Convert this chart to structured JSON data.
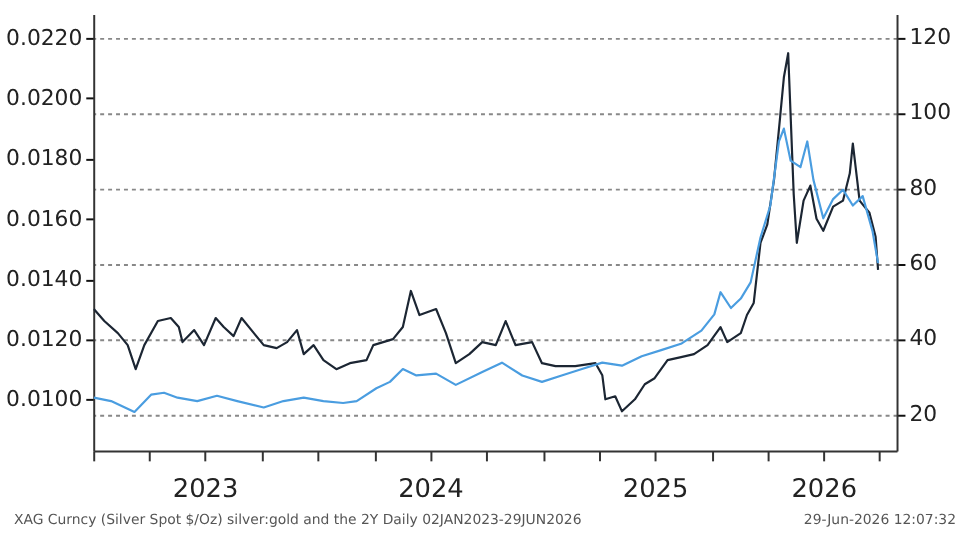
{
  "chart_data": {
    "type": "line",
    "xlim": [
      "2023-01-01",
      "2026-07-29"
    ],
    "xticks": [
      {
        "value": "2023-01-01",
        "label": null
      },
      {
        "value": "2023-04-01",
        "label": null
      },
      {
        "value": "2023-07-01",
        "label": "2023"
      },
      {
        "value": "2023-10-01",
        "label": null
      },
      {
        "value": "2024-01-01",
        "label": null
      },
      {
        "value": "2024-04-01",
        "label": null
      },
      {
        "value": "2024-07-01",
        "label": "2024"
      },
      {
        "value": "2024-10-01",
        "label": null
      },
      {
        "value": "2025-01-01",
        "label": null
      },
      {
        "value": "2025-04-01",
        "label": null
      },
      {
        "value": "2025-07-01",
        "label": "2025"
      },
      {
        "value": "2025-10-01",
        "label": null
      },
      {
        "value": "2026-01-01",
        "label": null
      },
      {
        "value": "2026-04-01",
        "label": "2026"
      },
      {
        "value": "2026-07-01",
        "label": null
      }
    ],
    "ylim": [
      0.0083,
      0.0228
    ],
    "yticks": [
      {
        "value": 0.01,
        "label": "0.0100"
      },
      {
        "value": 0.012,
        "label": "0.0120"
      },
      {
        "value": 0.014,
        "label": "0.0140"
      },
      {
        "value": 0.016,
        "label": "0.0160"
      },
      {
        "value": 0.018,
        "label": "0.0180"
      },
      {
        "value": 0.02,
        "label": "0.0200"
      },
      {
        "value": 0.022,
        "label": "0.0220"
      }
    ],
    "y2lim": [
      10.3,
      126.1
    ],
    "y2ticks": [
      20,
      40,
      60,
      80,
      100,
      120
    ],
    "grid": "y2",
    "line_style": "solid",
    "series": [
      {
        "color": "#1c2633",
        "axis": "y",
        "x": [
          "2023-01-02",
          "2023-01-19",
          "2023-02-10",
          "2023-02-26",
          "2023-03-11",
          "2023-03-25",
          "2023-04-16",
          "2023-05-07",
          "2023-05-20",
          "2023-05-26",
          "2023-06-14",
          "2023-06-30",
          "2023-07-19",
          "2023-08-01",
          "2023-08-17",
          "2023-08-30",
          "2023-09-19",
          "2023-10-05",
          "2023-10-26",
          "2023-11-12",
          "2023-11-28",
          "2023-12-09",
          "2023-12-25",
          "2024-01-10",
          "2024-01-31",
          "2024-02-22",
          "2024-03-20",
          "2024-03-31",
          "2024-04-16",
          "2024-05-02",
          "2024-05-18",
          "2024-05-31",
          "2024-06-14",
          "2024-07-11",
          "2024-07-27",
          "2024-08-12",
          "2024-09-03",
          "2024-09-24",
          "2024-10-16",
          "2024-11-01",
          "2024-11-17",
          "2024-12-14",
          "2024-12-30",
          "2025-01-21",
          "2025-02-22",
          "2025-03-27",
          "2025-04-07",
          "2025-04-12",
          "2025-04-28",
          "2025-05-09",
          "2025-05-30",
          "2025-06-15",
          "2025-07-01",
          "2025-07-22",
          "2025-08-13",
          "2025-09-03",
          "2025-09-25",
          "2025-10-16",
          "2025-10-27",
          "2025-11-18",
          "2025-11-28",
          "2025-12-09",
          "2025-12-20",
          "2025-12-31",
          "2026-01-11",
          "2026-01-21",
          "2026-01-27",
          "2026-02-03",
          "2026-02-12",
          "2026-02-17",
          "2026-02-28",
          "2026-03-11",
          "2026-03-21",
          "2026-04-01",
          "2026-04-17",
          "2026-05-03",
          "2026-05-14",
          "2026-05-19",
          "2026-05-30",
          "2026-06-15",
          "2026-06-25",
          "2026-06-29"
        ],
        "values": [
          0.013,
          0.0126,
          0.0122,
          0.0118,
          0.011,
          0.0118,
          0.0126,
          0.0127,
          0.0124,
          0.0119,
          0.0123,
          0.0118,
          0.0127,
          0.0124,
          0.0121,
          0.0127,
          0.0122,
          0.0118,
          0.0117,
          0.0119,
          0.0123,
          0.0115,
          0.0118,
          0.0113,
          0.011,
          0.0112,
          0.0113,
          0.0118,
          0.0119,
          0.012,
          0.0124,
          0.0136,
          0.0128,
          0.013,
          0.0122,
          0.0112,
          0.0115,
          0.0119,
          0.0118,
          0.0126,
          0.0118,
          0.0119,
          0.0112,
          0.0111,
          0.0111,
          0.0112,
          0.0108,
          0.01,
          0.0101,
          0.0096,
          0.01,
          0.0105,
          0.0107,
          0.0113,
          0.0114,
          0.0115,
          0.0118,
          0.0124,
          0.0119,
          0.0122,
          0.0128,
          0.0132,
          0.0152,
          0.0158,
          0.0173,
          0.0194,
          0.0207,
          0.0215,
          0.0168,
          0.0152,
          0.0166,
          0.0171,
          0.016,
          0.0156,
          0.0164,
          0.0166,
          0.0175,
          0.0185,
          0.0166,
          0.0162,
          0.0154,
          0.0143
        ]
      },
      {
        "color": "#4a9de0",
        "axis": "y2",
        "x": [
          "2023-01-02",
          "2023-01-30",
          "2023-03-09",
          "2023-04-05",
          "2023-04-26",
          "2023-05-18",
          "2023-06-19",
          "2023-07-21",
          "2023-08-23",
          "2023-10-05",
          "2023-11-06",
          "2023-12-09",
          "2024-01-10",
          "2024-02-11",
          "2024-03-04",
          "2024-04-05",
          "2024-04-27",
          "2024-05-18",
          "2024-06-09",
          "2024-07-11",
          "2024-08-12",
          "2024-09-24",
          "2024-10-26",
          "2024-11-28",
          "2024-12-30",
          "2025-01-31",
          "2025-03-05",
          "2025-04-07",
          "2025-05-09",
          "2025-06-10",
          "2025-07-13",
          "2025-08-14",
          "2025-09-15",
          "2025-10-06",
          "2025-10-16",
          "2025-11-02",
          "2025-11-18",
          "2025-12-04",
          "2025-12-20",
          "2026-01-05",
          "2026-01-19",
          "2026-01-27",
          "2026-02-07",
          "2026-02-23",
          "2026-03-06",
          "2026-03-16",
          "2026-04-01",
          "2026-04-17",
          "2026-05-03",
          "2026-05-19",
          "2026-06-04",
          "2026-06-20",
          "2026-06-29"
        ],
        "values": [
          24.3,
          23.4,
          20.5,
          25.1,
          25.6,
          24.3,
          23.4,
          24.8,
          23.4,
          21.7,
          23.4,
          24.3,
          23.4,
          22.9,
          23.4,
          26.8,
          28.5,
          31.9,
          30.2,
          30.7,
          27.7,
          31.1,
          33.6,
          30.2,
          28.5,
          30.2,
          31.9,
          33.6,
          32.8,
          35.3,
          37.0,
          38.7,
          42.1,
          46.4,
          52.3,
          48.1,
          50.6,
          54.9,
          66.8,
          75.3,
          92.3,
          95.7,
          87.2,
          85.5,
          92.3,
          82.1,
          71.9,
          77.0,
          79.5,
          75.3,
          77.8,
          68.5,
          60.0
        ]
      }
    ],
    "annotations": [
      "XAG Curncy (Silver Spot  $/Oz) silver:gold and the 2Y Daily 02JAN2023-29JUN2026",
      "29-Jun-2026 12:07:32"
    ]
  }
}
